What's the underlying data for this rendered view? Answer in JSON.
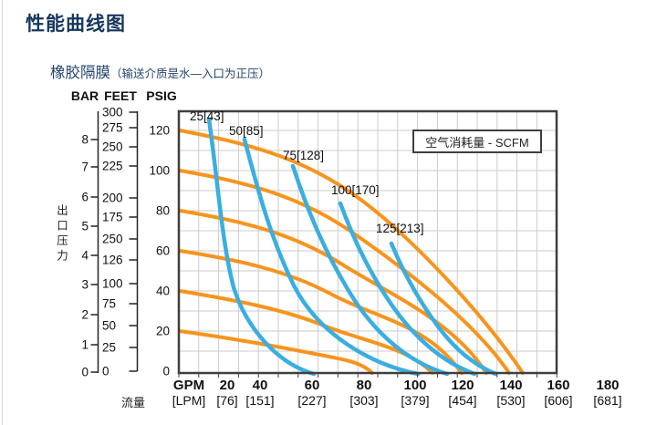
{
  "page": {
    "title": "性能曲线图",
    "subtitle": "橡胶隔膜",
    "subtitle_note": "（输送介质是水—入口为正压）"
  },
  "chart": {
    "y_unit_headers": [
      "BAR",
      "FEET",
      "PSIG"
    ],
    "y_axis_label": "出口压力",
    "bar_ticks": [
      "8",
      "7",
      "6",
      "5",
      "4",
      "3",
      "2",
      "1",
      "0"
    ],
    "feet_ticks": [
      "300",
      "275",
      "250",
      "225",
      "200",
      "175",
      "250",
      "126",
      "100",
      "75",
      "50",
      "25",
      "0"
    ],
    "psig_ticks": [
      "120",
      "100",
      "80",
      "60",
      "40",
      "20",
      "0"
    ],
    "x_primary_ticks": [
      "GPM",
      "20",
      "40",
      "60",
      "80",
      "100",
      "120",
      "140",
      "160",
      "180"
    ],
    "x_secondary_ticks": [
      "[LPM]",
      "[76]",
      "[151]",
      "[227]",
      "[303]",
      "[379]",
      "[454]",
      "[530]",
      "[606]",
      "[681]"
    ],
    "x_axis_name": "流量",
    "legend": "空气消耗量 - SCFM",
    "curve_labels": [
      "25[43]",
      "50[85]",
      "75[128]",
      "100[170]",
      "125[213]"
    ],
    "colors": {
      "title": "#17365D",
      "orange_curve": "#F7941D",
      "blue_curve": "#3BAEE0",
      "grid": "#CBCBCB",
      "frame": "#3F3F3F",
      "axis_line": "#222222"
    }
  },
  "chart_data": {
    "type": "line",
    "title": "性能曲线图",
    "subtitle": "橡胶隔膜（输送介质是水—入口为正压）",
    "legend": "空气消耗量 - SCFM",
    "grid": true,
    "x_axis": {
      "name": "流量",
      "units": [
        "GPM",
        "LPM"
      ],
      "ticks_gpm": [
        20,
        40,
        60,
        80,
        100,
        120,
        140,
        160,
        180
      ],
      "ticks_lpm": [
        76,
        151,
        227,
        303,
        379,
        454,
        530,
        606,
        681
      ],
      "range_gpm": [
        0,
        180
      ]
    },
    "y_axis": {
      "name": "出口压力",
      "units": [
        "BAR",
        "FEET",
        "PSIG"
      ],
      "ticks_bar": [
        8,
        7,
        6,
        5,
        4,
        3,
        2,
        1,
        0
      ],
      "ticks_feet_as_printed": [
        "300",
        "275",
        "250",
        "225",
        "200",
        "175",
        "250",
        "126",
        "100",
        "75",
        "50",
        "25",
        "0"
      ],
      "ticks_psig": [
        120,
        100,
        80,
        60,
        40,
        20,
        0
      ],
      "range_psig": [
        0,
        120
      ]
    },
    "series": [
      {
        "name": "出口压力曲线 起点 120 PSIG",
        "type": "performance-curve",
        "color": "#F7941D",
        "points_gpm_psig": [
          [
            0,
            120
          ],
          [
            40,
            110
          ],
          [
            80,
            88
          ],
          [
            110,
            62
          ],
          [
            135,
            28
          ],
          [
            144,
            0
          ]
        ]
      },
      {
        "name": "出口压力曲线 起点 100 PSIG",
        "type": "performance-curve",
        "color": "#F7941D",
        "points_gpm_psig": [
          [
            0,
            100
          ],
          [
            40,
            91
          ],
          [
            80,
            70
          ],
          [
            110,
            45
          ],
          [
            130,
            18
          ],
          [
            139,
            0
          ]
        ]
      },
      {
        "name": "出口压力曲线 起点 80 PSIG",
        "type": "performance-curve",
        "color": "#F7941D",
        "points_gpm_psig": [
          [
            0,
            80
          ],
          [
            40,
            72
          ],
          [
            80,
            52
          ],
          [
            105,
            30
          ],
          [
            125,
            8
          ],
          [
            129,
            0
          ]
        ]
      },
      {
        "name": "出口压力曲线 起点 60 PSIG",
        "type": "performance-curve",
        "color": "#F7941D",
        "points_gpm_psig": [
          [
            0,
            60
          ],
          [
            40,
            52
          ],
          [
            80,
            34
          ],
          [
            100,
            18
          ],
          [
            119,
            0
          ]
        ]
      },
      {
        "name": "出口压力曲线 起点 40 PSIG",
        "type": "performance-curve",
        "color": "#F7941D",
        "points_gpm_psig": [
          [
            0,
            40
          ],
          [
            40,
            33
          ],
          [
            80,
            17
          ],
          [
            100,
            6
          ],
          [
            107,
            0
          ]
        ]
      },
      {
        "name": "出口压力曲线 起点 20 PSIG",
        "type": "performance-curve",
        "color": "#F7941D",
        "points_gpm_psig": [
          [
            0,
            20
          ],
          [
            40,
            14
          ],
          [
            70,
            6
          ],
          [
            83,
            0
          ]
        ]
      },
      {
        "name": "25[43]",
        "type": "空气消耗量 SCFM",
        "color": "#3BAEE0",
        "points_gpm_psig": [
          [
            12,
            125
          ],
          [
            17,
            90
          ],
          [
            24,
            55
          ],
          [
            35,
            25
          ],
          [
            60,
            0
          ]
        ]
      },
      {
        "name": "50[85]",
        "type": "空气消耗量 SCFM",
        "color": "#3BAEE0",
        "points_gpm_psig": [
          [
            30,
            115
          ],
          [
            37,
            85
          ],
          [
            48,
            55
          ],
          [
            68,
            22
          ],
          [
            101,
            0
          ]
        ]
      },
      {
        "name": "75[128]",
        "type": "空气消耗量 SCFM",
        "color": "#3BAEE0",
        "points_gpm_psig": [
          [
            52,
            102
          ],
          [
            60,
            75
          ],
          [
            73,
            48
          ],
          [
            90,
            24
          ],
          [
            114,
            0
          ]
        ]
      },
      {
        "name": "100[170]",
        "type": "空气消耗量 SCFM",
        "color": "#3BAEE0",
        "points_gpm_psig": [
          [
            70,
            84
          ],
          [
            78,
            62
          ],
          [
            90,
            40
          ],
          [
            104,
            20
          ],
          [
            125,
            0
          ]
        ]
      },
      {
        "name": "125[213]",
        "type": "空气消耗量 SCFM",
        "color": "#3BAEE0",
        "points_gpm_psig": [
          [
            90,
            64
          ],
          [
            97,
            48
          ],
          [
            108,
            30
          ],
          [
            120,
            14
          ],
          [
            134,
            0
          ]
        ]
      }
    ]
  }
}
